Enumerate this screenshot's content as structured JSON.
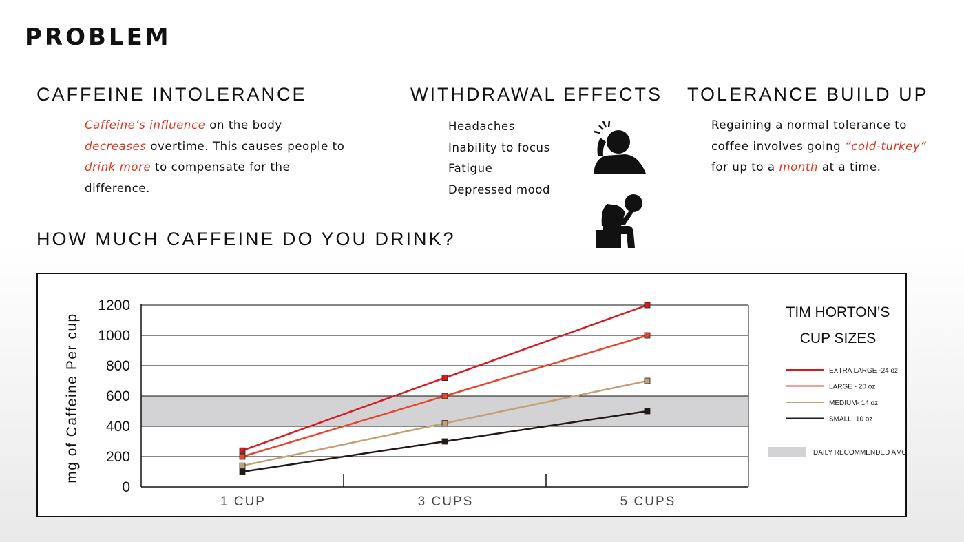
{
  "page_title": "PROBLEM",
  "caffeine_intolerance": {
    "title": "CAFFEINE INTOLERANCE",
    "lines": [
      [
        {
          "t": "Caffeine’s influence",
          "hl": true
        },
        {
          "t": " on the body",
          "hl": false
        }
      ],
      [
        {
          "t": "decreases",
          "hl": true
        },
        {
          "t": " overtime. This causes people to",
          "hl": false
        }
      ],
      [
        {
          "t": "drink more",
          "hl": true
        },
        {
          "t": " to compensate for the",
          "hl": false
        }
      ],
      [
        {
          "t": "difference.",
          "hl": false
        }
      ]
    ]
  },
  "withdrawal_effects": {
    "title": "WITHDRAWAL EFFECTS",
    "items": [
      "Headaches",
      "Inability to focus",
      "Fatigue",
      "Depressed mood"
    ]
  },
  "tolerance_build_up": {
    "title": "TOLERANCE BUILD UP",
    "lines": [
      [
        {
          "t": "Regaining a normal tolerance to",
          "hl": false
        }
      ],
      [
        {
          "t": "coffee involves going ",
          "hl": false
        },
        {
          "t": "“cold-turkey”",
          "hl": true
        }
      ],
      [
        {
          "t": "for up to a ",
          "hl": false
        },
        {
          "t": "month",
          "hl": true
        },
        {
          "t": " at a time.",
          "hl": false
        }
      ]
    ]
  },
  "chart_heading": "HOW MUCH CAFFEINE DO YOU DRINK?",
  "icons": [
    "headache-person-icon",
    "depressed-person-icon"
  ],
  "colors": {
    "accent": "#e0351f",
    "extra_large": "#d71920",
    "large": "#e8452a",
    "medium": "#c4a074",
    "small": "#231815",
    "recommended_band": "#d3d3d5"
  },
  "chart_data": {
    "type": "line",
    "categories": [
      "1 CUP",
      "3 CUPS",
      "5 CUPS"
    ],
    "ylabel": "mg of Caffeine Per cup",
    "xlabel": "",
    "ylim": [
      0,
      1200
    ],
    "yticks": [
      "0",
      "200",
      "400",
      "600",
      "800",
      "1000",
      "1200"
    ],
    "grid": true,
    "legend_title": [
      "TIM HORTON’S",
      "CUP SIZES"
    ],
    "legend_position": "right",
    "series": [
      {
        "name": "EXTRA LARGE -24 oz",
        "values": [
          240,
          720,
          1200
        ],
        "color": "#d71920"
      },
      {
        "name": "LARGE - 20 oz",
        "values": [
          200,
          600,
          1000
        ],
        "color": "#e8452a"
      },
      {
        "name": "MEDIUM- 14 oz",
        "values": [
          140,
          420,
          700
        ],
        "color": "#c4a074"
      },
      {
        "name": "SMALL- 10 oz",
        "values": [
          100,
          300,
          500
        ],
        "color": "#231815"
      }
    ],
    "band": {
      "name": "DAILY RECOMMENDED AMOUNT",
      "from": 400,
      "to": 600
    }
  }
}
